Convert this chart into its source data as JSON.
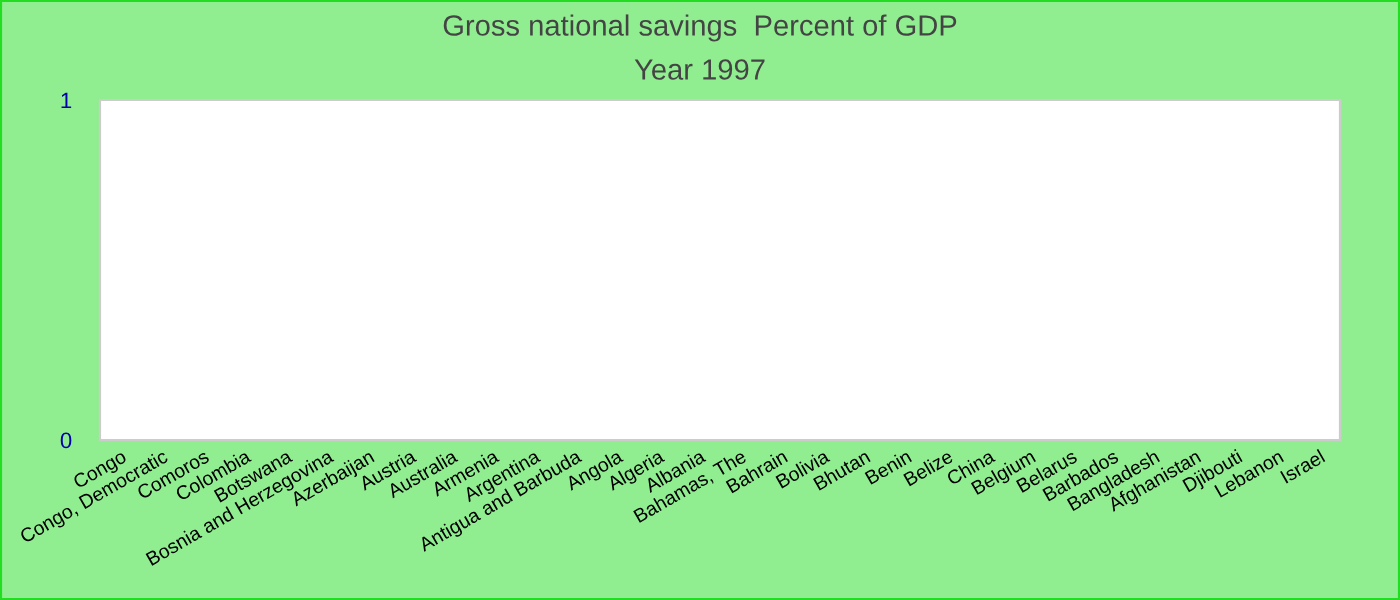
{
  "chart_data": {
    "type": "bar",
    "title": "Gross national savings  Percent of GDP",
    "subtitle": "Year 1997",
    "categories": [
      "Congo",
      "Congo, Democratic",
      "Comoros",
      "Colombia",
      "Botswana",
      "Bosnia and Herzegovina",
      "Azerbaijan",
      "Austria",
      "Australia",
      "Armenia",
      "Argentina",
      "Antigua and Barbuda",
      "Angola",
      "Algeria",
      "Albania",
      "Bahamas, The",
      "Bahrain",
      "Bolivia",
      "Bhutan",
      "Benin",
      "Belize",
      "China",
      "Belgium",
      "Belarus",
      "Barbados",
      "Bangladesh",
      "Afghanistan",
      "Djibouti",
      "Lebanon",
      "Israel"
    ],
    "values": [
      null,
      null,
      null,
      null,
      null,
      null,
      null,
      null,
      null,
      null,
      null,
      null,
      null,
      null,
      null,
      null,
      null,
      null,
      null,
      null,
      null,
      null,
      null,
      null,
      null,
      null,
      null,
      null,
      null,
      null
    ],
    "ylim": [
      0,
      1
    ],
    "yticks": [
      0,
      1
    ],
    "grid": false,
    "legend": false
  }
}
